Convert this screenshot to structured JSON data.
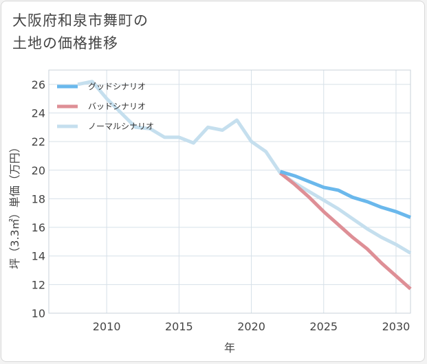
{
  "title_lines": [
    "大阪府和泉市舞町の",
    "土地の価格推移"
  ],
  "chart_data": {
    "type": "line",
    "xlabel": "年",
    "ylabel": "坪（3.3㎡）単価（万円）",
    "xlim": [
      2006,
      2031
    ],
    "ylim": [
      10,
      27
    ],
    "x_ticks": [
      2010,
      2015,
      2020,
      2025,
      2030
    ],
    "y_ticks": [
      10,
      12,
      14,
      16,
      18,
      20,
      22,
      24,
      26
    ],
    "grid": true,
    "legend_position": "top-left",
    "series": [
      {
        "name": "ノーマルシナリオ",
        "color": "#c5dfee",
        "x": [
          2008,
          2009,
          2010,
          2011,
          2012,
          2013,
          2014,
          2015,
          2016,
          2017,
          2018,
          2019,
          2020,
          2021,
          2022,
          2023,
          2024,
          2025,
          2026,
          2027,
          2028,
          2029,
          2030,
          2031
        ],
        "values": [
          26.0,
          26.2,
          25.0,
          24.0,
          23.0,
          22.9,
          22.3,
          22.3,
          21.9,
          23.0,
          22.8,
          23.5,
          22.0,
          21.3,
          19.8,
          19.1,
          18.5,
          17.9,
          17.3,
          16.6,
          15.9,
          15.3,
          14.8,
          14.2
        ]
      },
      {
        "name": "バッドシナリオ",
        "color": "#de8f96",
        "x": [
          2022,
          2023,
          2024,
          2025,
          2026,
          2027,
          2028,
          2029,
          2030,
          2031
        ],
        "values": [
          19.8,
          19.0,
          18.1,
          17.1,
          16.2,
          15.3,
          14.5,
          13.5,
          12.6,
          11.7
        ]
      },
      {
        "name": "グッドシナリオ",
        "color": "#6ab8ec",
        "x": [
          2022,
          2023,
          2024,
          2025,
          2026,
          2027,
          2028,
          2029,
          2030,
          2031
        ],
        "values": [
          19.9,
          19.6,
          19.2,
          18.8,
          18.6,
          18.1,
          17.8,
          17.4,
          17.1,
          16.7
        ]
      }
    ],
    "legend": [
      "グッドシナリオ",
      "バッドシナリオ",
      "ノーマルシナリオ"
    ]
  }
}
